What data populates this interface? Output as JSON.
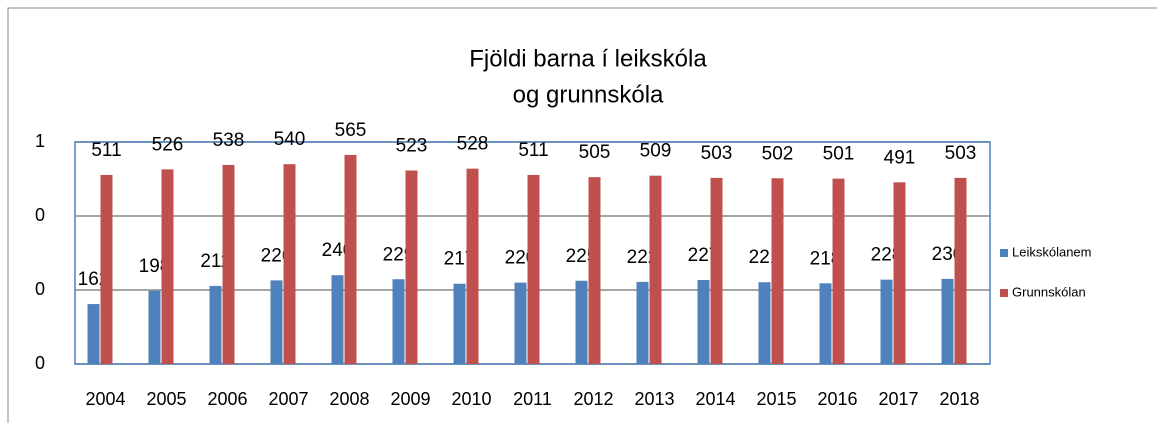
{
  "chart_data": {
    "type": "bar",
    "title": [
      "Fjöldi barna í leikskóla",
      "og grunnskóla"
    ],
    "categories": [
      "2004",
      "2005",
      "2006",
      "2007",
      "2008",
      "2009",
      "2010",
      "2011",
      "2012",
      "2013",
      "2014",
      "2015",
      "2016",
      "2017",
      "2018"
    ],
    "series": [
      {
        "name": "Leikskólanem",
        "color": "#4f81bd",
        "values": [
          162,
          198,
          211,
          226,
          240,
          229,
          217,
          220,
          225,
          222,
          227,
          221,
          218,
          228,
          230
        ]
      },
      {
        "name": "Grunnskólan",
        "color": "#c0504d",
        "values": [
          511,
          526,
          538,
          540,
          565,
          523,
          528,
          511,
          505,
          509,
          503,
          502,
          501,
          491,
          503
        ]
      }
    ],
    "ylim": [
      0,
      600
    ],
    "yticks": [
      0,
      {
        "value": 200,
        "label": "0"
      },
      {
        "value": 400,
        "label": "0"
      },
      {
        "value": 600,
        "label": "1"
      }
    ],
    "grid": true,
    "legend": "right"
  }
}
